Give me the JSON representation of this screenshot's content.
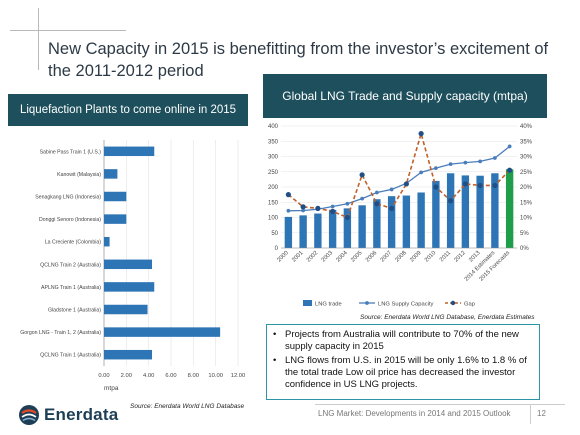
{
  "slide": {
    "title": "New Capacity in 2015 is benefitting from the investor’s excitement of the 2011-2012 period",
    "page_number": "12",
    "footer": "LNG Market: Developments in 2014 and 2015 Outlook"
  },
  "brand": {
    "name": "Enerdata"
  },
  "left_panel": {
    "header": "Liquefaction Plants to come online in 2015",
    "source": "Source: Enerdata World LNG Database"
  },
  "right_panel": {
    "header": "Global LNG Trade and Supply capacity (mtpa)",
    "source": "Source: Enerdata World LNG Database, Enerdata Estimates"
  },
  "bullets": [
    "Projects from Australia will contribute to 70% of the new supply capacity in 2015",
    "LNG flows from U.S. in 2015 will be only 1.6% to 1.8 % of the total trade Low oil price has decreased the investor confidence in US LNG projects."
  ],
  "colors": {
    "bar": "#2e75b6",
    "capacity_line": "#4a7ebb",
    "gap_line": "#c0602a",
    "forecast_bar": "#1e9e4a",
    "header_bg": "#1d4f5c"
  },
  "chart_data": [
    {
      "type": "bar",
      "orientation": "horizontal",
      "xlabel": "mtpa",
      "xlim": [
        0,
        12
      ],
      "xticks": [
        "0.00",
        "2.00",
        "4.00",
        "6.00",
        "8.00",
        "10.00",
        "12.00"
      ],
      "categories": [
        "Sabine Pass Train 1 (U.S.)",
        "Kanowit (Malaysia)",
        "Senagkang LNG (Indonesia)",
        "Donggi Senoro (Indonesia)",
        "La Creciente (Colombia)",
        "QCLNG Train 2 (Australia)",
        "APLNG Train 1 (Australia)",
        "Gladstone 1 (Australia)",
        "Gorgon LNG - Train 1, 2 (Australia)",
        "QCLNG Train 1 (Australia)"
      ],
      "values": [
        4.5,
        1.2,
        2.0,
        2.0,
        0.5,
        4.3,
        4.5,
        3.9,
        10.4,
        4.3
      ]
    },
    {
      "type": "bar+line",
      "categories": [
        "2000",
        "2001",
        "2002",
        "2003",
        "2004",
        "2005",
        "2006",
        "2007",
        "2008",
        "2009",
        "2010",
        "2011",
        "2012",
        "2013",
        "2014 Estimates",
        "2015 Forecasts"
      ],
      "ylim_left": [
        0,
        400
      ],
      "yticks_left": [
        "0",
        "50",
        "100",
        "150",
        "200",
        "250",
        "300",
        "350",
        "400"
      ],
      "ylim_right": [
        0,
        40
      ],
      "yticks_right": [
        "0%",
        "5%",
        "10%",
        "15%",
        "20%",
        "25%",
        "30%",
        "35%",
        "40%"
      ],
      "series": [
        {
          "name": "LNG trade",
          "type": "bar",
          "axis": "left",
          "values": [
            102,
            107,
            113,
            125,
            130,
            140,
            160,
            170,
            172,
            182,
            220,
            245,
            238,
            237,
            245,
            258
          ]
        },
        {
          "name": "LNG Supply Capacity",
          "type": "line",
          "axis": "left",
          "values": [
            122,
            123,
            127,
            136,
            145,
            162,
            182,
            192,
            212,
            248,
            262,
            275,
            280,
            284,
            295,
            333
          ]
        },
        {
          "name": "Gap",
          "type": "line",
          "dashed": true,
          "axis": "right",
          "values": [
            17.5,
            13.5,
            13.0,
            12.0,
            10.0,
            24.0,
            14.5,
            13.0,
            21.0,
            37.5,
            20.0,
            15.5,
            21.0,
            20.5,
            20.5,
            25.5
          ]
        }
      ]
    }
  ]
}
